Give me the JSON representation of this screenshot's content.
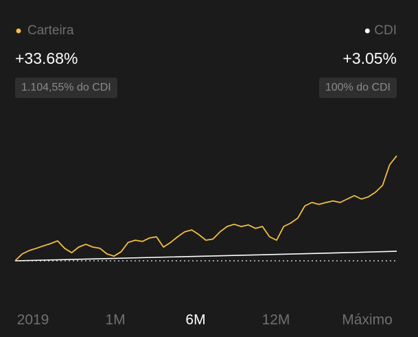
{
  "chart_data": {
    "type": "line",
    "series": [
      {
        "name": "Carteira",
        "color": "#f5c042",
        "return_label": "+33.68%",
        "cdi_label": "1.104,55% do CDI",
        "values": [
          0,
          2.2,
          3.3,
          4.0,
          4.8,
          5.5,
          6.4,
          4.0,
          2.6,
          4.4,
          5.3,
          4.4,
          4.0,
          2.2,
          1.5,
          2.9,
          5.9,
          6.6,
          6.2,
          7.3,
          7.7,
          4.4,
          5.9,
          7.7,
          9.3,
          9.9,
          8.4,
          6.6,
          7.0,
          9.3,
          11.0,
          11.7,
          11.0,
          11.5,
          10.4,
          11.0,
          7.7,
          6.6,
          11.0,
          12.1,
          13.7,
          17.6,
          18.7,
          18.1,
          18.7,
          19.2,
          18.7,
          19.8,
          20.9,
          19.8,
          20.5,
          22.0,
          24.2,
          30.8,
          33.68
        ]
      },
      {
        "name": "CDI",
        "color": "#ffffff",
        "return_label": "+3.05%",
        "cdi_label": "100% do CDI",
        "values": [
          0,
          0.6,
          1.2,
          1.8,
          2.4,
          3.05
        ]
      }
    ],
    "ylim": [
      -4.4,
      40.7
    ]
  },
  "period_buttons": [
    "2019",
    "1M",
    "6M",
    "12M",
    "Máximo"
  ],
  "selected_period": 2
}
